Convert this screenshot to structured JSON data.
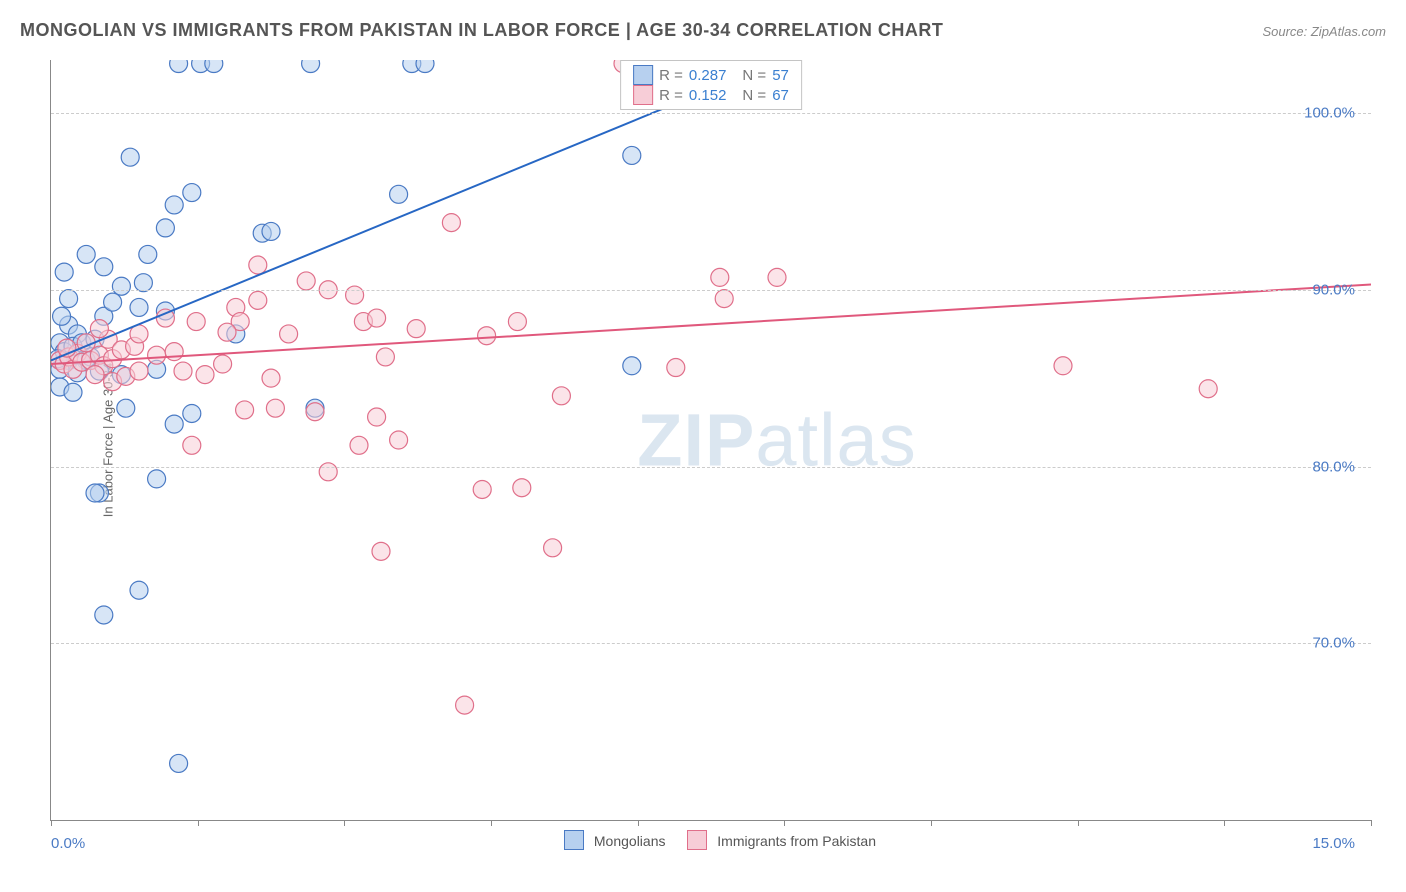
{
  "title": "MONGOLIAN VS IMMIGRANTS FROM PAKISTAN IN LABOR FORCE | AGE 30-34 CORRELATION CHART",
  "source": "Source: ZipAtlas.com",
  "ylabel": "In Labor Force | Age 30-34",
  "watermark": {
    "left": "ZIP",
    "right": "atlas"
  },
  "chart": {
    "type": "scatter",
    "xlim": [
      0,
      15
    ],
    "ylim": [
      60,
      103
    ],
    "background_color": "#ffffff",
    "grid_color": "#cccccc",
    "grid_dash": true,
    "axis_color": "#888888",
    "y_gridlines": [
      70,
      80,
      90,
      100
    ],
    "y_tick_labels": {
      "70": "70.0%",
      "80": "80.0%",
      "90": "90.0%",
      "100": "100.0%"
    },
    "x_tick_positions": [
      0,
      1.67,
      3.33,
      5.0,
      6.67,
      8.33,
      10.0,
      11.67,
      13.33,
      15.0
    ],
    "x_axis_labels": {
      "0": "0.0%",
      "15": "15.0%"
    },
    "x_label_color": "#4a7ac4",
    "y_label_color": "#4a7ac4",
    "marker_radius": 9,
    "marker_stroke_width": 1.2,
    "trend_line_width": 2,
    "series": [
      {
        "name": "Mongolians",
        "fill": "#b7d0ef",
        "stroke": "#4a7ac4",
        "fill_opacity": 0.55,
        "trend_color": "#2767c4",
        "trend_start": [
          0,
          86
        ],
        "trend_end": [
          8.3,
          103
        ],
        "R": "0.287",
        "N": "57",
        "points": [
          [
            0.1,
            87
          ],
          [
            0.15,
            86.5
          ],
          [
            0.2,
            86
          ],
          [
            0.2,
            88
          ],
          [
            0.1,
            85.5
          ],
          [
            0.3,
            87.5
          ],
          [
            0.25,
            86.8
          ],
          [
            0.35,
            87
          ],
          [
            0.4,
            86
          ],
          [
            0.3,
            85.3
          ],
          [
            0.12,
            88.5
          ],
          [
            0.45,
            86.2
          ],
          [
            0.5,
            87.2
          ],
          [
            0.6,
            88.5
          ],
          [
            0.55,
            85.4
          ],
          [
            0.9,
            97.5
          ],
          [
            0.7,
            89.3
          ],
          [
            0.2,
            89.5
          ],
          [
            0.15,
            91
          ],
          [
            0.8,
            90.2
          ],
          [
            1.0,
            89
          ],
          [
            1.05,
            90.4
          ],
          [
            0.4,
            92
          ],
          [
            1.1,
            92
          ],
          [
            1.3,
            93.5
          ],
          [
            1.45,
            102.8
          ],
          [
            1.7,
            102.8
          ],
          [
            1.85,
            102.8
          ],
          [
            2.95,
            102.8
          ],
          [
            4.1,
            102.8
          ],
          [
            4.25,
            102.8
          ],
          [
            1.6,
            95.5
          ],
          [
            1.4,
            94.8
          ],
          [
            2.4,
            93.2
          ],
          [
            2.5,
            93.3
          ],
          [
            0.6,
            91.3
          ],
          [
            3.95,
            95.4
          ],
          [
            6.6,
            97.6
          ],
          [
            7.5,
            102.8
          ],
          [
            1.3,
            88.8
          ],
          [
            1.2,
            85.5
          ],
          [
            0.8,
            85.2
          ],
          [
            2.1,
            87.5
          ],
          [
            3.0,
            83.3
          ],
          [
            0.85,
            83.3
          ],
          [
            1.6,
            83
          ],
          [
            1.4,
            82.4
          ],
          [
            1.2,
            79.3
          ],
          [
            0.55,
            78.5
          ],
          [
            0.5,
            78.5
          ],
          [
            1.0,
            73
          ],
          [
            0.6,
            71.6
          ],
          [
            1.45,
            63.2
          ],
          [
            6.6,
            85.7
          ],
          [
            0.1,
            84.5
          ],
          [
            0.25,
            84.2
          ],
          [
            0.08,
            86.1
          ]
        ]
      },
      {
        "name": "Immigrants from Pakistan",
        "fill": "#f7cdd7",
        "stroke": "#e06f8a",
        "fill_opacity": 0.55,
        "trend_color": "#e0587c",
        "trend_start": [
          0,
          85.8
        ],
        "trend_end": [
          15,
          90.3
        ],
        "R": "0.152",
        "N": "67",
        "points": [
          [
            0.1,
            86
          ],
          [
            0.15,
            85.8
          ],
          [
            0.2,
            86.2
          ],
          [
            0.25,
            85.5
          ],
          [
            0.3,
            86.4
          ],
          [
            0.35,
            85.9
          ],
          [
            0.18,
            86.7
          ],
          [
            0.45,
            86
          ],
          [
            0.4,
            87
          ],
          [
            0.55,
            86.3
          ],
          [
            0.6,
            85.7
          ],
          [
            0.7,
            86.1
          ],
          [
            0.65,
            87.2
          ],
          [
            0.8,
            86.6
          ],
          [
            0.5,
            85.2
          ],
          [
            0.7,
            84.8
          ],
          [
            0.85,
            85.1
          ],
          [
            1.0,
            85.4
          ],
          [
            0.95,
            86.8
          ],
          [
            1.2,
            86.3
          ],
          [
            1.4,
            86.5
          ],
          [
            0.55,
            87.8
          ],
          [
            1.0,
            87.5
          ],
          [
            1.3,
            88.4
          ],
          [
            1.65,
            88.2
          ],
          [
            2.1,
            89
          ],
          [
            2.35,
            89.4
          ],
          [
            2.15,
            88.2
          ],
          [
            2.7,
            87.5
          ],
          [
            2.35,
            91.4
          ],
          [
            2.9,
            90.5
          ],
          [
            3.15,
            90
          ],
          [
            3.55,
            88.2
          ],
          [
            3.45,
            89.7
          ],
          [
            3.7,
            88.4
          ],
          [
            4.55,
            93.8
          ],
          [
            4.15,
            87.8
          ],
          [
            5.3,
            88.2
          ],
          [
            4.95,
            87.4
          ],
          [
            7.6,
            90.7
          ],
          [
            8.25,
            90.7
          ],
          [
            7.65,
            89.5
          ],
          [
            7.1,
            85.6
          ],
          [
            5.8,
            84
          ],
          [
            6.5,
            102.8
          ],
          [
            7.0,
            102.8
          ],
          [
            11.5,
            85.7
          ],
          [
            13.15,
            84.4
          ],
          [
            1.5,
            85.4
          ],
          [
            1.75,
            85.2
          ],
          [
            1.95,
            85.8
          ],
          [
            2.5,
            85
          ],
          [
            3.8,
            86.2
          ],
          [
            2.0,
            87.6
          ],
          [
            2.2,
            83.2
          ],
          [
            2.55,
            83.3
          ],
          [
            3.0,
            83.1
          ],
          [
            3.7,
            82.8
          ],
          [
            1.6,
            81.2
          ],
          [
            3.15,
            79.7
          ],
          [
            3.5,
            81.2
          ],
          [
            3.95,
            81.5
          ],
          [
            4.9,
            78.7
          ],
          [
            5.35,
            78.8
          ],
          [
            5.7,
            75.4
          ],
          [
            3.75,
            75.2
          ],
          [
            4.7,
            66.5
          ]
        ]
      }
    ],
    "legend": {
      "position": "bottom-center",
      "items": [
        {
          "label": "Mongolians",
          "fill": "#b7d0ef",
          "stroke": "#4a7ac4"
        },
        {
          "label": "Immigrants from Pakistan",
          "fill": "#f7cdd7",
          "stroke": "#e06f8a"
        }
      ]
    },
    "stat_box": {
      "rows": [
        {
          "swatch_fill": "#b7d0ef",
          "swatch_stroke": "#4a7ac4",
          "R": "0.287",
          "N": "57"
        },
        {
          "swatch_fill": "#f7cdd7",
          "swatch_stroke": "#e06f8a",
          "R": "0.152",
          "N": "67"
        }
      ]
    }
  }
}
